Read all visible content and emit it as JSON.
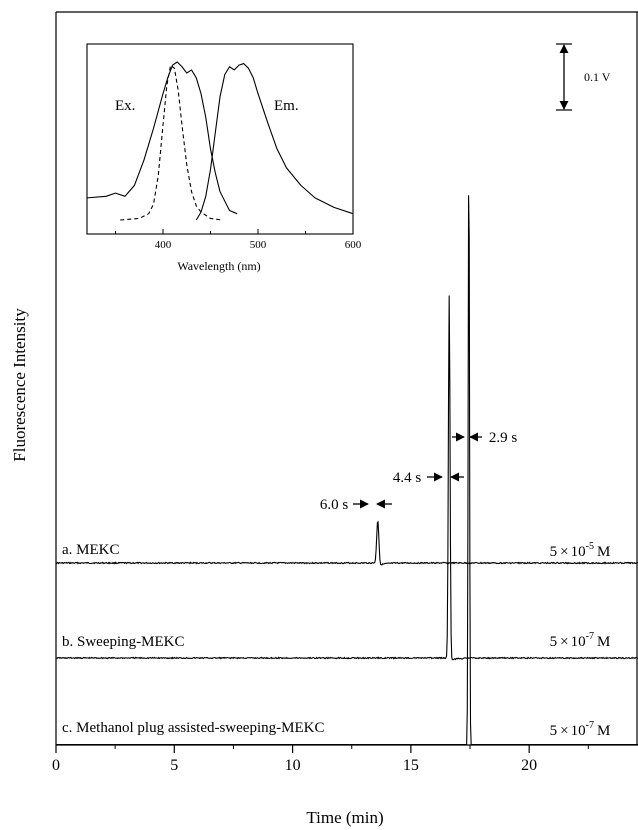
{
  "chart_data": [
    {
      "type": "line",
      "title": "",
      "xlabel": "Time (min)",
      "ylabel": "Fluorescence Intensity",
      "xlim": [
        0,
        24.6
      ],
      "xticks": [
        0,
        5,
        10,
        15,
        20
      ],
      "scale_bar": {
        "label": "0.1 V",
        "volts": 0.1
      },
      "series": [
        {
          "name": "a. MEKC",
          "concentration": {
            "base": "5",
            "times": "×",
            "ten": "10",
            "exp": "-5",
            "unit": "M"
          },
          "baseline_level": 0.0,
          "peak": {
            "time_min": 13.6,
            "height_v": 0.065,
            "width_label": "6.0 s"
          }
        },
        {
          "name": "b. Sweeping-MEKC",
          "concentration": {
            "base": "5",
            "times": "×",
            "ten": "10",
            "exp": "-7",
            "unit": "M"
          },
          "baseline_level": 0.0,
          "peak": {
            "time_min": 16.62,
            "height_v": 0.55,
            "width_label": "4.4 s"
          }
        },
        {
          "name": "c. Methanol plug assisted-sweeping-MEKC",
          "concentration": {
            "base": "5",
            "times": "×",
            "ten": "10",
            "exp": "-7",
            "unit": "M"
          },
          "baseline_level": 0.0,
          "peak": {
            "time_min": 17.45,
            "height_v": 0.91,
            "width_label": "2.9 s"
          }
        }
      ]
    },
    {
      "type": "line",
      "title": "",
      "xlabel": "Wavelength (nm)",
      "xlim": [
        320,
        600
      ],
      "xticks": [
        400,
        500,
        600
      ],
      "series": [
        {
          "name": "Ex.",
          "style": "solid",
          "x": [
            320,
            340,
            350,
            360,
            370,
            380,
            390,
            400,
            405,
            410,
            415,
            420,
            425,
            430,
            435,
            440,
            445,
            450,
            455,
            460,
            470,
            478
          ],
          "y": [
            0.14,
            0.15,
            0.17,
            0.15,
            0.22,
            0.38,
            0.58,
            0.8,
            0.9,
            0.98,
            1.0,
            0.97,
            0.93,
            0.95,
            0.9,
            0.8,
            0.65,
            0.45,
            0.3,
            0.18,
            0.06,
            0.04
          ]
        },
        {
          "name": "Ex. (dashed)",
          "style": "dashed",
          "x": [
            355,
            375,
            385,
            390,
            395,
            400,
            404,
            408,
            412,
            416,
            420,
            425,
            430,
            435,
            440,
            450,
            462
          ],
          "y": [
            0.0,
            0.01,
            0.04,
            0.1,
            0.28,
            0.6,
            0.85,
            0.98,
            0.96,
            0.82,
            0.6,
            0.35,
            0.18,
            0.09,
            0.05,
            0.01,
            0.0
          ]
        },
        {
          "name": "Em.",
          "style": "solid",
          "x": [
            435,
            440,
            445,
            450,
            455,
            460,
            465,
            470,
            475,
            480,
            485,
            490,
            495,
            500,
            510,
            520,
            530,
            545,
            560,
            580,
            600
          ],
          "y": [
            0.0,
            0.05,
            0.15,
            0.32,
            0.55,
            0.78,
            0.92,
            0.97,
            0.95,
            0.98,
            0.99,
            0.96,
            0.9,
            0.8,
            0.62,
            0.45,
            0.33,
            0.22,
            0.14,
            0.08,
            0.04
          ]
        }
      ]
    }
  ]
}
